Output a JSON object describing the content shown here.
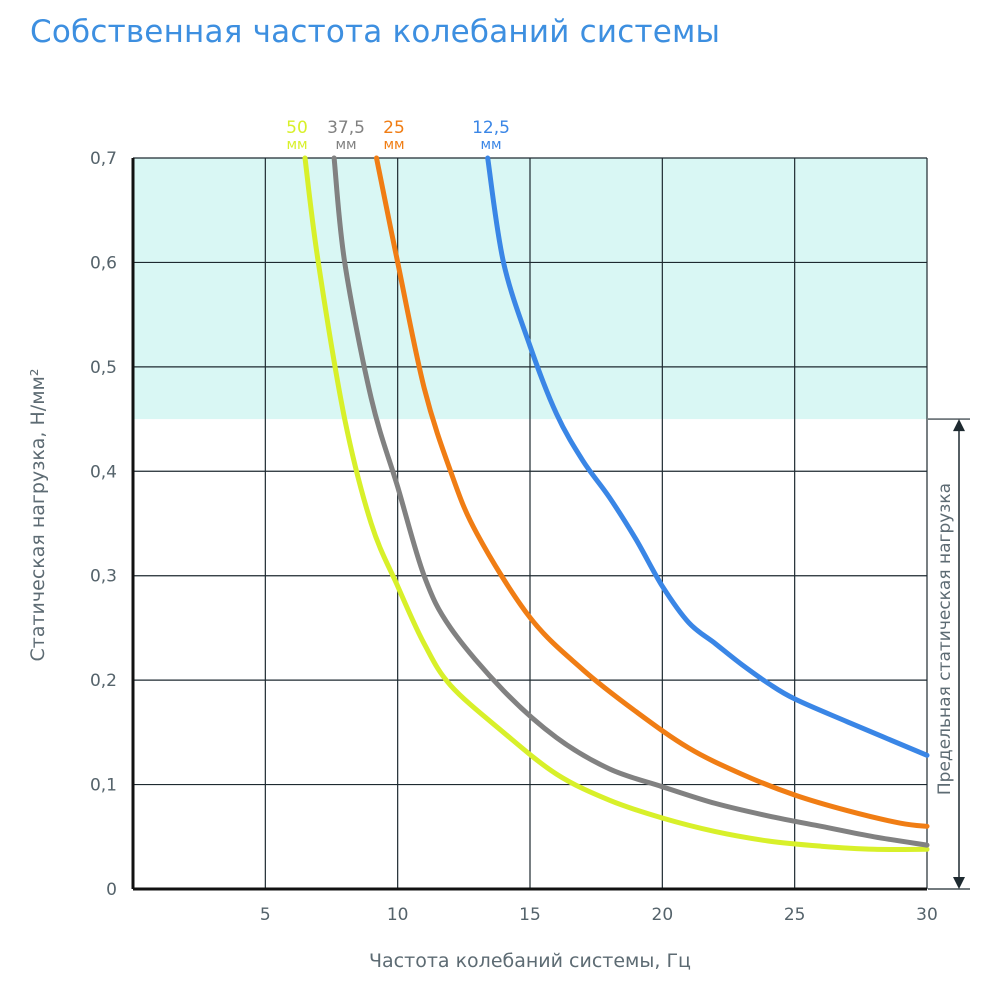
{
  "chart_data": {
    "type": "line",
    "title": "Собственная частота колебаний системы",
    "xlabel": "Частота колебаний системы, Гц",
    "ylabel": "Статическая нагрузка, Н/мм²",
    "xlim": [
      0,
      30
    ],
    "ylim": [
      0,
      0.7
    ],
    "x_ticks": [
      "5",
      "10",
      "15",
      "20",
      "25",
      "30"
    ],
    "x_tick_values": [
      5,
      10,
      15,
      20,
      25,
      30
    ],
    "y_ticks": [
      "0",
      "0,1",
      "0,2",
      "0,3",
      "0,4",
      "0,5",
      "0,6",
      "0,7"
    ],
    "y_tick_values": [
      0,
      0.1,
      0.2,
      0.3,
      0.4,
      0.5,
      0.6,
      0.7
    ],
    "grid": true,
    "shaded_region": {
      "y_from": 0.45,
      "y_to": 0.7,
      "color": "#d9f7f4"
    },
    "limit_annotation": {
      "label": "Предельная статическая нагрузка",
      "y_from": 0,
      "y_to": 0.45
    },
    "series": [
      {
        "name": "50",
        "unit": "мм",
        "color": "#d8f02a",
        "points": [
          [
            6.5,
            0.7
          ],
          [
            7,
            0.6
          ],
          [
            8,
            0.45
          ],
          [
            9,
            0.35
          ],
          [
            10,
            0.29
          ],
          [
            11,
            0.235
          ],
          [
            12,
            0.195
          ],
          [
            14,
            0.15
          ],
          [
            16,
            0.11
          ],
          [
            18,
            0.085
          ],
          [
            20,
            0.068
          ],
          [
            22,
            0.055
          ],
          [
            24,
            0.046
          ],
          [
            26,
            0.041
          ],
          [
            28,
            0.038
          ],
          [
            30,
            0.038
          ]
        ]
      },
      {
        "name": "37,5",
        "unit": "мм",
        "color": "#818181",
        "points": [
          [
            7.6,
            0.7
          ],
          [
            8,
            0.6
          ],
          [
            9,
            0.47
          ],
          [
            10,
            0.385
          ],
          [
            11,
            0.3
          ],
          [
            12,
            0.25
          ],
          [
            14,
            0.19
          ],
          [
            16,
            0.145
          ],
          [
            18,
            0.115
          ],
          [
            20,
            0.098
          ],
          [
            22,
            0.082
          ],
          [
            24,
            0.07
          ],
          [
            26,
            0.06
          ],
          [
            28,
            0.05
          ],
          [
            30,
            0.042
          ]
        ]
      },
      {
        "name": "25",
        "unit": "мм",
        "color": "#f07d14",
        "points": [
          [
            9.2,
            0.7
          ],
          [
            10,
            0.6
          ],
          [
            11,
            0.48
          ],
          [
            12,
            0.4
          ],
          [
            13,
            0.34
          ],
          [
            15,
            0.26
          ],
          [
            17,
            0.21
          ],
          [
            19,
            0.17
          ],
          [
            21,
            0.135
          ],
          [
            23,
            0.11
          ],
          [
            25,
            0.09
          ],
          [
            27,
            0.075
          ],
          [
            29,
            0.063
          ],
          [
            30,
            0.06
          ]
        ]
      },
      {
        "name": "12,5",
        "unit": "мм",
        "color": "#3a86e6",
        "points": [
          [
            13.4,
            0.7
          ],
          [
            14,
            0.6
          ],
          [
            15,
            0.52
          ],
          [
            16,
            0.455
          ],
          [
            17,
            0.41
          ],
          [
            18,
            0.375
          ],
          [
            19,
            0.335
          ],
          [
            20,
            0.29
          ],
          [
            21,
            0.255
          ],
          [
            22,
            0.235
          ],
          [
            23,
            0.215
          ],
          [
            24,
            0.197
          ],
          [
            25,
            0.182
          ],
          [
            27,
            0.16
          ],
          [
            30,
            0.128
          ]
        ]
      }
    ]
  }
}
